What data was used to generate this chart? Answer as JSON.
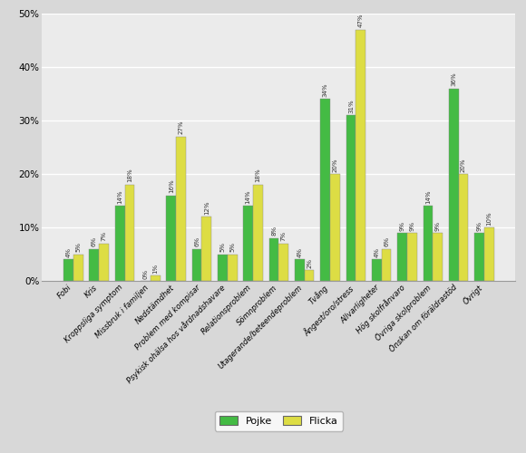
{
  "categories": [
    "Fobi",
    "Kris",
    "Kroppsliga symptom",
    "Missbruk i familjen",
    "Nedstämdhet",
    "Problem med kompisar",
    "Psykisk ohälsa hos vårdnadshavare",
    "Relationsproblem",
    "Sömnproblem",
    "Utagerande/beteendeproblem",
    "Tvång",
    "Ångest/oro/stress",
    "Allvarligheter",
    "Hög skolfrånvaro",
    "Övriga skolproblem",
    "Önskan om föräldrastöd",
    "Övrigt"
  ],
  "pojke": [
    4,
    6,
    14,
    0,
    16,
    6,
    5,
    14,
    8,
    4,
    34,
    31,
    4,
    9,
    14,
    36,
    9
  ],
  "flicka": [
    5,
    7,
    18,
    1,
    27,
    12,
    5,
    18,
    7,
    2,
    20,
    47,
    6,
    9,
    9,
    20,
    10
  ],
  "pojke_color": "#44bb44",
  "flicka_color": "#dddd44",
  "background_color": "#d8d8d8",
  "plot_background": "#ebebeb",
  "grid_color": "#ffffff",
  "ylim": [
    0,
    50
  ],
  "yticks": [
    0,
    10,
    20,
    30,
    40,
    50
  ],
  "bar_width": 0.38,
  "legend_labels": [
    "Pojke",
    "Flicka"
  ]
}
